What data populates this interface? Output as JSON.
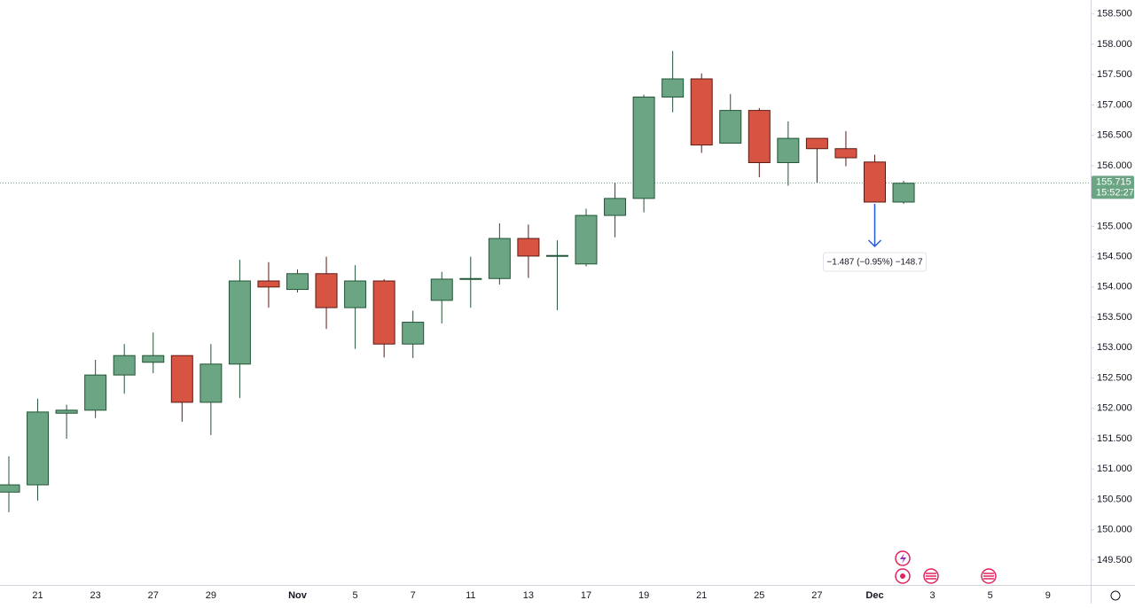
{
  "chart_data": {
    "type": "candlestick",
    "categories": [
      null,
      "21",
      null,
      "23",
      null,
      "27",
      null,
      "29",
      null,
      null,
      "Nov",
      null,
      "5",
      null,
      "7",
      null,
      "11",
      null,
      "13",
      null,
      "17",
      null,
      "19",
      null,
      "21",
      null,
      "25",
      null,
      "27",
      null,
      "Dec",
      null,
      "3",
      null,
      "5",
      null,
      "9"
    ],
    "open": [
      150.62,
      150.74,
      151.92,
      151.97,
      152.55,
      152.76,
      152.87,
      152.1,
      152.73,
      154.1,
      153.96,
      154.22,
      153.66,
      154.1,
      153.06,
      153.78,
      154.13,
      154.14,
      154.8,
      154.51,
      154.38,
      155.18,
      155.46,
      157.13,
      157.43,
      156.37,
      156.91,
      156.05,
      156.45,
      156.28,
      156.06,
      155.4,
      null,
      null,
      null,
      null,
      null
    ],
    "high": [
      151.21,
      152.16,
      152.06,
      152.8,
      153.06,
      153.25,
      152.87,
      153.06,
      154.45,
      154.41,
      154.29,
      154.5,
      154.36,
      154.13,
      153.61,
      154.25,
      154.5,
      155.05,
      155.03,
      154.77,
      155.29,
      155.72,
      157.17,
      157.89,
      157.52,
      157.18,
      156.95,
      156.73,
      156.45,
      156.57,
      156.18,
      155.75,
      null,
      null,
      null,
      null,
      null
    ],
    "low": [
      150.29,
      150.48,
      151.5,
      151.84,
      152.24,
      152.58,
      151.78,
      151.56,
      152.17,
      153.66,
      153.91,
      153.31,
      152.98,
      152.84,
      152.83,
      153.4,
      153.66,
      154.04,
      154.15,
      153.62,
      154.34,
      154.82,
      155.23,
      156.88,
      156.21,
      156.37,
      155.81,
      155.67,
      155.72,
      155.99,
      155.4,
      155.37,
      null,
      null,
      null,
      null,
      null
    ],
    "close": [
      150.74,
      151.94,
      151.97,
      152.55,
      152.87,
      152.87,
      152.1,
      152.73,
      154.1,
      154.0,
      154.22,
      153.66,
      154.1,
      153.06,
      153.42,
      154.13,
      154.14,
      154.8,
      154.51,
      154.52,
      155.18,
      155.46,
      157.13,
      157.43,
      156.34,
      156.91,
      156.05,
      156.45,
      156.28,
      156.13,
      155.4,
      155.71,
      null,
      null,
      null,
      null,
      null
    ],
    "up_color": "#6ba583",
    "down_color": "#d75442",
    "ylim": [
      149.09,
      158.73
    ],
    "yticks": [
      {
        "value": 149.5,
        "label": "149.500"
      },
      {
        "value": 150,
        "label": "150.000"
      },
      {
        "value": 150.5,
        "label": "150.500"
      },
      {
        "value": 151,
        "label": "151.000"
      },
      {
        "value": 151.5,
        "label": "151.500"
      },
      {
        "value": 152,
        "label": "152.000"
      },
      {
        "value": 152.5,
        "label": "152.500"
      },
      {
        "value": 153,
        "label": "153.000"
      },
      {
        "value": 153.5,
        "label": "153.500"
      },
      {
        "value": 154,
        "label": "154.000"
      },
      {
        "value": 154.5,
        "label": "154.500"
      },
      {
        "value": 155,
        "label": "155.000"
      },
      {
        "value": 155.5,
        "label": "155.500"
      },
      {
        "value": 156,
        "label": "156.000"
      },
      {
        "value": 156.5,
        "label": "156.500"
      },
      {
        "value": 157,
        "label": "157.000"
      },
      {
        "value": 157.5,
        "label": "157.500"
      },
      {
        "value": 158,
        "label": "158.000"
      },
      {
        "value": 158.5,
        "label": "158.500"
      }
    ],
    "last_price": 155.715,
    "countdown": "15:52:27",
    "annotation": "−1.487 (−0.95%) −148.7"
  }
}
